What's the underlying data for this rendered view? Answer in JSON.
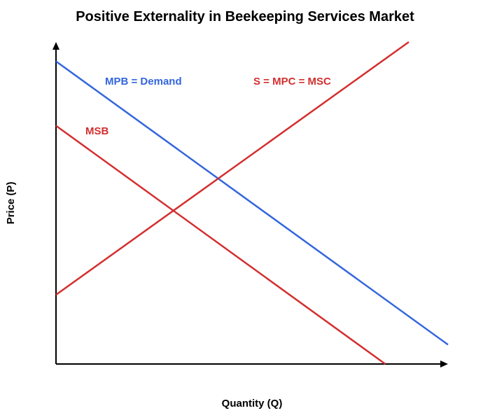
{
  "chart_data": {
    "type": "line",
    "title": "Positive Externality in Beekeeping Services Market",
    "xlabel": "Quantity (Q)",
    "ylabel": "Price (P)",
    "xlim": [
      0,
      100
    ],
    "ylim": [
      0,
      100
    ],
    "grid": false,
    "legend": "none",
    "series": [
      {
        "name": "MPB = Demand",
        "color": "#3366dd",
        "x": [
          0,
          100
        ],
        "y": [
          94,
          6
        ]
      },
      {
        "name": "S = MPC = MSC",
        "color": "#d32f2f",
        "x": [
          0,
          90
        ],
        "y": [
          21.5,
          100
        ]
      },
      {
        "name": "MSB",
        "color": "#d32f2f",
        "x": [
          0,
          84
        ],
        "y": [
          74,
          0
        ]
      }
    ]
  }
}
